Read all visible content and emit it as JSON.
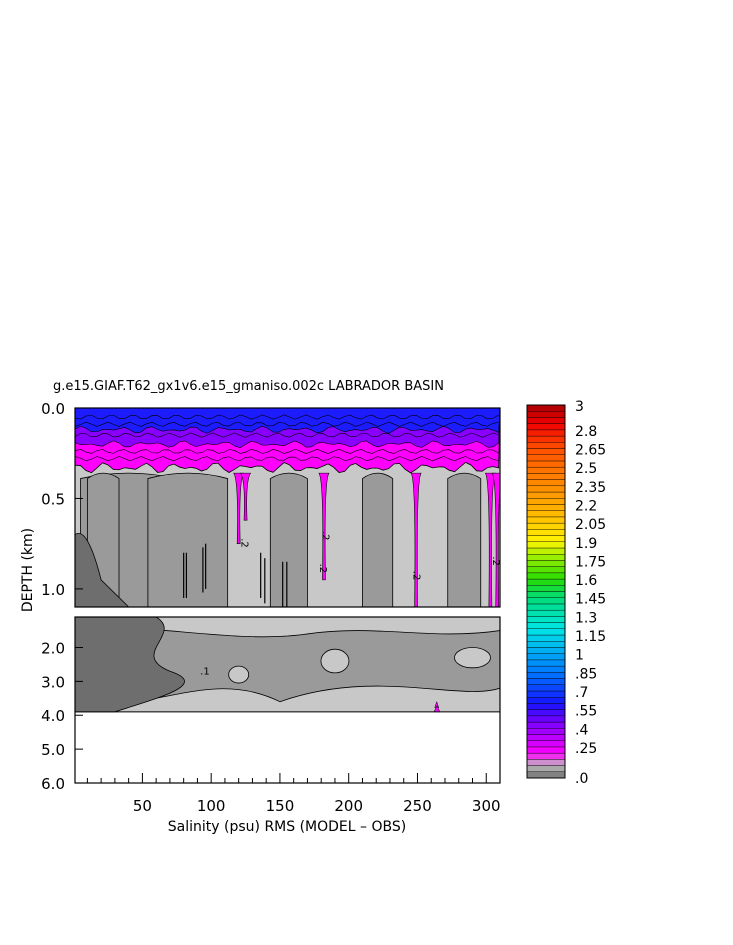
{
  "chart_data": {
    "type": "heatmap",
    "title": "g.e15.GIAF.T62_gx1v6.e15_gmaniso.002c LABRADOR BASIN",
    "xlabel": "Salinity (psu) RMS (MODEL – OBS)",
    "ylabel": "DEPTH (km)",
    "xlim": [
      1,
      310
    ],
    "x_ticks": [
      50,
      100,
      150,
      200,
      250,
      300
    ],
    "x_tick_labels": [
      "50",
      "100",
      "150",
      "200",
      "250",
      "300"
    ],
    "y_ticks_upper": [
      0.0,
      0.5,
      1.0
    ],
    "y_tick_labels_upper": [
      "0.0",
      "0.5",
      "1.0"
    ],
    "y_ticks_lower": [
      2.0,
      3.0,
      4.0,
      5.0,
      6.0
    ],
    "y_tick_labels_lower": [
      "2.0",
      "3.0",
      "4.0",
      "5.0",
      "6.0"
    ],
    "upper_panel_ylim": [
      0.0,
      1.1
    ],
    "lower_panel_ylim": [
      1.1,
      6.0
    ],
    "ocean_bottom_depth": 3.9,
    "colorbar_levels": [
      0.0,
      0.05,
      0.1,
      0.15,
      0.2,
      0.25,
      0.3,
      0.35,
      0.4,
      0.45,
      0.5,
      0.55,
      0.6,
      0.65,
      0.7,
      0.75,
      0.8,
      0.85,
      0.9,
      0.95,
      1.0,
      1.05,
      1.1,
      1.15,
      1.2,
      1.25,
      1.3,
      1.35,
      1.4,
      1.45,
      1.5,
      1.55,
      1.6,
      1.65,
      1.7,
      1.75,
      1.8,
      1.85,
      1.9,
      1.95,
      2.0,
      2.05,
      2.1,
      2.15,
      2.2,
      2.25,
      2.3,
      2.35,
      2.4,
      2.45,
      2.5,
      2.55,
      2.6,
      2.65,
      2.7,
      2.75,
      2.8,
      2.85,
      2.9,
      2.95,
      3.0
    ],
    "colorbar_tick_labels": [
      "3",
      "2.8",
      "2.65",
      "2.5",
      "2.35",
      "2.2",
      "2.05",
      "1.9",
      "1.75",
      "1.6",
      "1.45",
      "1.3",
      "1.15",
      "1",
      ".85",
      ".7",
      ".55",
      ".4",
      ".25",
      ".0"
    ],
    "contour_labels": [
      ".2",
      ".2",
      ".2",
      ".2",
      ".2",
      ".1"
    ],
    "colors": {
      "gray_dark": "#6e6e6e",
      "gray_mid": "#9a9a9a",
      "gray_light": "#c8c8c8",
      "magenta": "#ff00ff",
      "purple": "#8a00ff",
      "blue": "#1c1cff"
    }
  }
}
